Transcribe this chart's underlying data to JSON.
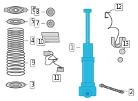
{
  "background_color": "#ffffff",
  "highlight_color": "#29b8e0",
  "line_color": "#505050",
  "label_fontsize": 5.5,
  "fig_w": 2.0,
  "fig_h": 1.47,
  "dpi": 100,
  "shock_color": "#29b8e0",
  "shock_outline": "#1a90b8",
  "part_fill": "#e8e8e8",
  "part_edge": "#505050"
}
